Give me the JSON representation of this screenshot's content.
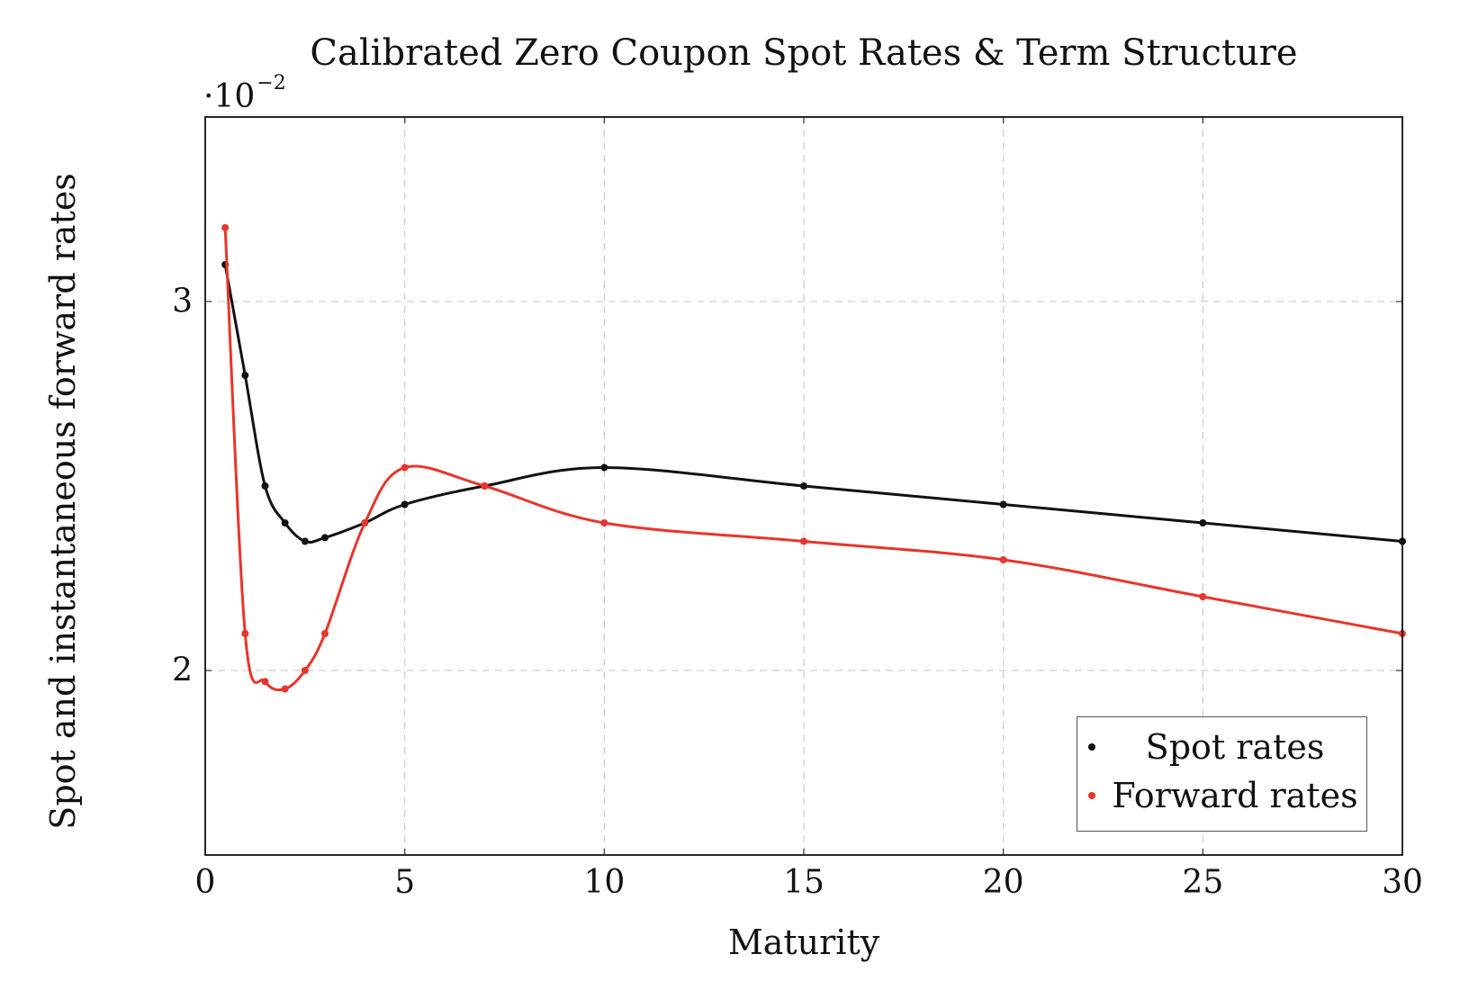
{
  "chart_data": {
    "type": "line",
    "title": "Calibrated Zero Coupon Spot Rates & Term Structure",
    "xlabel": "Maturity",
    "ylabel": "Spot and instantaneous forward rates",
    "y_scale_label": "·10",
    "y_scale_exponent": "−2",
    "xlim": [
      0,
      30
    ],
    "ylim": [
      1.5,
      3.5
    ],
    "xticks": [
      0,
      5,
      10,
      15,
      20,
      25,
      30
    ],
    "yticks": [
      2,
      3
    ],
    "grid": true,
    "legend_position": "bottom-right",
    "series": [
      {
        "name": "Spot rates",
        "color": "#111111",
        "x": [
          0.5,
          1,
          1.5,
          2,
          2.5,
          3,
          4,
          5,
          7,
          10,
          15,
          20,
          25,
          30
        ],
        "y": [
          3.1,
          2.8,
          2.5,
          2.4,
          2.35,
          2.36,
          2.4,
          2.45,
          2.5,
          2.55,
          2.5,
          2.45,
          2.4,
          2.35
        ]
      },
      {
        "name": "Forward rates",
        "color": "#e8352b",
        "x": [
          0.5,
          1,
          1.5,
          2,
          2.5,
          3,
          4,
          5,
          7,
          10,
          15,
          20,
          25,
          30
        ],
        "y": [
          3.2,
          2.1,
          1.97,
          1.95,
          2.0,
          2.1,
          2.4,
          2.55,
          2.5,
          2.4,
          2.35,
          2.3,
          2.2,
          2.1
        ]
      }
    ]
  }
}
